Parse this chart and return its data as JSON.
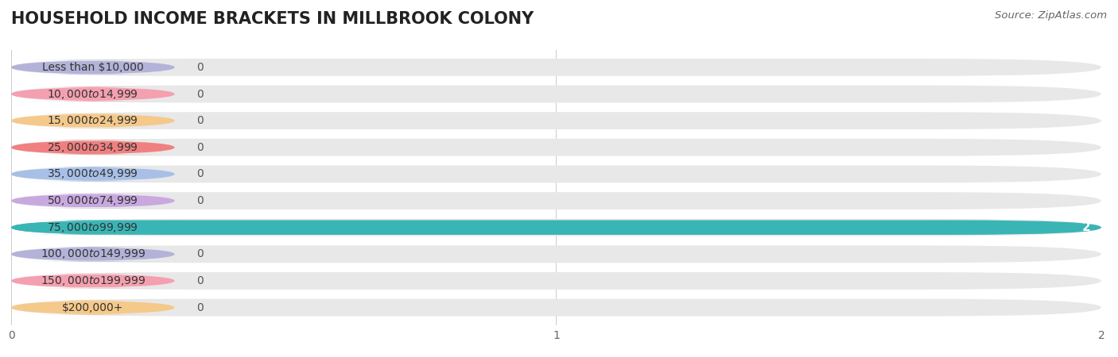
{
  "title": "HOUSEHOLD INCOME BRACKETS IN MILLBROOK COLONY",
  "source": "Source: ZipAtlas.com",
  "categories": [
    "Less than $10,000",
    "$10,000 to $14,999",
    "$15,000 to $24,999",
    "$25,000 to $34,999",
    "$35,000 to $49,999",
    "$50,000 to $74,999",
    "$75,000 to $99,999",
    "$100,000 to $149,999",
    "$150,000 to $199,999",
    "$200,000+"
  ],
  "values": [
    0,
    0,
    0,
    0,
    0,
    0,
    2,
    0,
    0,
    0
  ],
  "bar_colors": [
    "#b3b3d9",
    "#f4a0b0",
    "#f5c98a",
    "#f08080",
    "#a8c0e8",
    "#c9a8e0",
    "#3ab5b5",
    "#b3b3d9",
    "#f4a0b0",
    "#f5c98a"
  ],
  "bg_bar_color": "#e8e8e8",
  "xlim": [
    0,
    2
  ],
  "xticks": [
    0,
    1,
    2
  ],
  "background_color": "#ffffff",
  "title_fontsize": 15,
  "label_fontsize": 10,
  "source_fontsize": 9.5,
  "value_label_fontsize": 11
}
